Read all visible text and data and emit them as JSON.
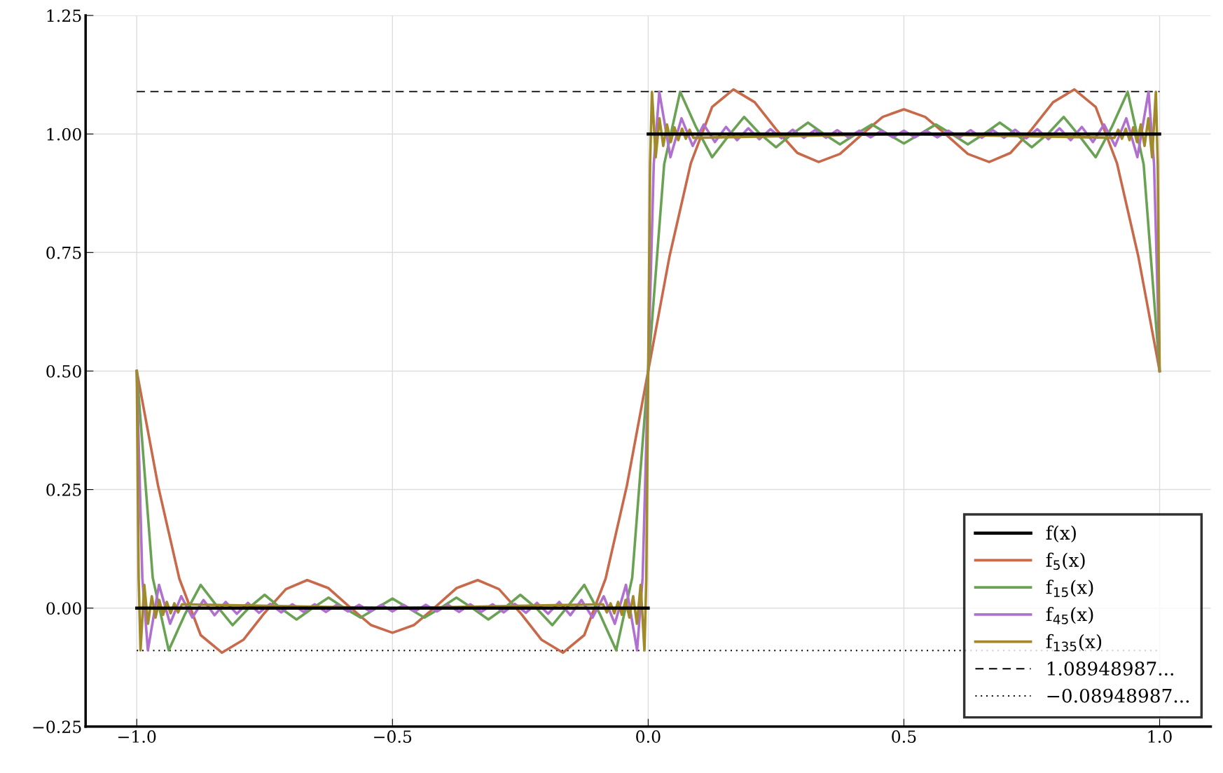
{
  "chart_data": {
    "type": "line",
    "xlim": [
      -1.1,
      1.1
    ],
    "ylim": [
      -0.25,
      1.25
    ],
    "xticks": [
      {
        "value": -1,
        "label": "−1.0"
      },
      {
        "value": -0.5,
        "label": "−0.5"
      },
      {
        "value": 0,
        "label": "0.0"
      },
      {
        "value": 0.5,
        "label": "0.5"
      },
      {
        "value": 1,
        "label": "1.0"
      }
    ],
    "yticks": [
      {
        "value": -0.25,
        "label": "−0.25"
      },
      {
        "value": 0,
        "label": "0.00"
      },
      {
        "value": 0.25,
        "label": "0.25"
      },
      {
        "value": 0.5,
        "label": "0.50"
      },
      {
        "value": 0.75,
        "label": "0.75"
      },
      {
        "value": 1,
        "label": "1.00"
      },
      {
        "value": 1.25,
        "label": "1.25"
      }
    ],
    "grid": true,
    "legend": "bottom right",
    "series": [
      {
        "name": "f$_{5}$(x)",
        "color": "#c8694a",
        "x": [
          -1,
          -0.9583,
          -0.9167,
          -0.875,
          -0.8333,
          -0.7917,
          -0.75,
          -0.7083,
          -0.6667,
          -0.625,
          -0.5833,
          -0.5417,
          -0.5,
          -0.4583,
          -0.4167,
          -0.375,
          -0.3333,
          -0.2917,
          -0.25,
          -0.2083,
          -0.1667,
          -0.125,
          -0.0833,
          -0.0417,
          0,
          0.0417,
          0.0833,
          0.125,
          0.1667,
          0.2083,
          0.25,
          0.2917,
          0.3333,
          0.375,
          0.4167,
          0.4583,
          0.5,
          0.5417,
          0.5833,
          0.625,
          0.6667,
          0.7083,
          0.75,
          0.7917,
          0.8333,
          0.875,
          0.9167,
          0.9583,
          1
        ],
        "values": [
          0.5,
          0.258,
          0.062,
          -0.057,
          -0.094,
          -0.067,
          -0.01,
          0.04,
          0.059,
          0.042,
          0.002,
          -0.036,
          -0.052,
          -0.036,
          0.002,
          0.042,
          0.059,
          0.04,
          -0.01,
          -0.067,
          -0.094,
          -0.057,
          0.062,
          0.258,
          0.5,
          0.742,
          0.938,
          1.057,
          1.094,
          1.067,
          1.01,
          0.96,
          0.941,
          0.958,
          0.998,
          1.036,
          1.052,
          1.036,
          0.998,
          0.958,
          0.941,
          0.96,
          1.01,
          1.067,
          1.094,
          1.057,
          0.938,
          0.742,
          0.5
        ]
      },
      {
        "name": "f$_{15}$(x)",
        "color": "#6aa253",
        "x": [
          -1,
          -0.96875,
          -0.9375,
          -0.90625,
          -0.875,
          -0.84375,
          -0.8125,
          -0.78125,
          -0.75,
          -0.71875,
          -0.6875,
          -0.65625,
          -0.625,
          -0.59375,
          -0.5625,
          -0.53125,
          -0.5,
          -0.46875,
          -0.4375,
          -0.40625,
          -0.375,
          -0.34375,
          -0.3125,
          -0.28125,
          -0.25,
          -0.21875,
          -0.1875,
          -0.15625,
          -0.125,
          -0.09375,
          -0.0625,
          -0.03125,
          0,
          0.03125,
          0.0625,
          0.09375,
          0.125,
          0.15625,
          0.1875,
          0.21875,
          0.25,
          0.28125,
          0.3125,
          0.34375,
          0.375,
          0.40625,
          0.4375,
          0.46875,
          0.5,
          0.53125,
          0.5625,
          0.59375,
          0.625,
          0.65625,
          0.6875,
          0.71875,
          0.75,
          0.78125,
          0.8125,
          0.84375,
          0.875,
          0.90625,
          0.9375,
          0.96875,
          1
        ],
        "values": [
          0.5,
          0.064,
          -0.089,
          -0.014,
          0.049,
          0.005,
          -0.036,
          0,
          0.028,
          0,
          -0.024,
          0,
          0.022,
          0,
          -0.02,
          0,
          0.02,
          0,
          -0.02,
          0,
          0.022,
          0,
          -0.024,
          0,
          0.028,
          0,
          -0.036,
          0.005,
          0.049,
          -0.014,
          -0.089,
          0.064,
          0.5,
          0.936,
          1.089,
          1.014,
          0.951,
          0.995,
          1.036,
          1,
          0.972,
          1,
          1.024,
          1,
          0.978,
          1,
          1.02,
          1,
          0.98,
          1,
          1.02,
          1,
          0.978,
          1,
          1.024,
          1,
          0.972,
          1,
          1.036,
          0.995,
          0.951,
          1.014,
          1.089,
          0.936,
          0.5
        ]
      },
      {
        "name": "f$_{45}$(x)",
        "color": "#b070d0",
        "x": [
          -1,
          -0.98913,
          -0.9783,
          -0.9565,
          -0.9348,
          -0.913,
          -0.8913,
          -0.8696,
          -0.8478,
          -0.8261,
          -0.8043,
          -0.7826,
          -0.7609,
          -0.7391,
          -0.7174,
          -0.6957,
          -0.6739,
          -0.6522,
          -0.6304,
          -0.6087,
          -0.587,
          -0.5652,
          -0.5435,
          -0.5217,
          -0.5,
          -0.4783,
          -0.4565,
          -0.4348,
          -0.413,
          -0.3913,
          -0.3696,
          -0.3478,
          -0.3261,
          -0.3043,
          -0.2826,
          -0.2609,
          -0.2391,
          -0.2174,
          -0.1957,
          -0.1739,
          -0.1522,
          -0.1304,
          -0.1087,
          -0.087,
          -0.0652,
          -0.0435,
          -0.0217,
          -0.01087,
          0,
          0.01087,
          0.0217,
          0.0435,
          0.0652,
          0.087,
          0.1087,
          0.1304,
          0.1522,
          0.1739,
          0.1957,
          0.2174,
          0.2391,
          0.2609,
          0.2826,
          0.3043,
          0.3261,
          0.3478,
          0.3696,
          0.3913,
          0.413,
          0.4348,
          0.4565,
          0.4783,
          0.5,
          0.5217,
          0.5435,
          0.5652,
          0.587,
          0.6087,
          0.6304,
          0.6522,
          0.6739,
          0.6957,
          0.7174,
          0.7391,
          0.7609,
          0.7826,
          0.8043,
          0.8261,
          0.8478,
          0.8696,
          0.8913,
          0.913,
          0.9348,
          0.9565,
          0.9783,
          0.98913,
          1
        ],
        "values": [
          0.5,
          0.064,
          -0.089,
          0.049,
          -0.033,
          0.025,
          -0.02,
          0.017,
          -0.015,
          0.013,
          -0.012,
          0.011,
          -0.01,
          0.009,
          -0.009,
          0.008,
          -0.008,
          0.008,
          -0.008,
          0.007,
          -0.007,
          0.007,
          -0.007,
          0.007,
          -0.007,
          0.007,
          -0.007,
          0.007,
          -0.007,
          0.007,
          -0.008,
          0.008,
          -0.008,
          0.008,
          -0.009,
          0.009,
          -0.01,
          0.011,
          -0.012,
          0.013,
          -0.015,
          0.017,
          -0.02,
          0.025,
          -0.033,
          0.049,
          -0.089,
          0.064,
          0.5,
          0.936,
          1.089,
          0.951,
          1.033,
          0.975,
          1.02,
          0.983,
          1.015,
          0.987,
          1.012,
          0.989,
          1.01,
          0.991,
          1.009,
          0.992,
          1.008,
          0.992,
          1.008,
          0.993,
          1.007,
          0.993,
          1.007,
          0.993,
          1.007,
          0.993,
          1.007,
          0.993,
          1.007,
          0.993,
          1.008,
          0.992,
          1.008,
          0.992,
          1.009,
          0.991,
          1.01,
          0.989,
          1.012,
          0.987,
          1.015,
          0.983,
          1.02,
          0.975,
          1.033,
          0.951,
          1.089,
          0.936,
          0.5
        ]
      },
      {
        "name": "f$_{135}$(x)",
        "color": "#a08a2a",
        "x": [
          -1,
          -0.99632,
          -0.99265,
          -0.98529,
          -0.97794,
          -0.97059,
          -0.96324,
          -0.95588,
          -0.94853,
          -0.94118,
          -0.93382,
          -0.92647,
          -0.91912,
          -0.91176,
          -0.5,
          -0.08824,
          -0.08088,
          -0.07353,
          -0.06618,
          -0.05882,
          -0.05147,
          -0.04412,
          -0.03676,
          -0.02941,
          -0.02206,
          -0.01471,
          -0.00735,
          -0.00368,
          0,
          0.00368,
          0.00735,
          0.01471,
          0.02206,
          0.02941,
          0.03676,
          0.04412,
          0.05147,
          0.05882,
          0.06618,
          0.07353,
          0.08088,
          0.08824,
          0.5,
          0.91176,
          0.91912,
          0.92647,
          0.93382,
          0.94118,
          0.94853,
          0.95588,
          0.96324,
          0.97059,
          0.97794,
          0.98529,
          0.99265,
          0.99632,
          1
        ],
        "values": [
          0.5,
          0.064,
          -0.089,
          0.049,
          -0.033,
          0.025,
          -0.02,
          0.017,
          -0.014,
          0.013,
          -0.011,
          0.01,
          -0.009,
          0.008,
          0,
          0.008,
          -0.009,
          0.01,
          -0.011,
          0.013,
          -0.014,
          0.017,
          -0.02,
          0.025,
          -0.033,
          0.049,
          -0.089,
          0.064,
          0.5,
          0.936,
          1.089,
          0.951,
          1.033,
          0.975,
          1.02,
          0.983,
          1.014,
          0.987,
          1.011,
          0.99,
          1.009,
          0.992,
          1,
          0.992,
          1.009,
          0.99,
          1.011,
          0.987,
          1.014,
          0.983,
          1.02,
          0.975,
          1.033,
          0.951,
          1.089,
          0.936,
          0.5
        ]
      },
      {
        "name": "f(x)",
        "color": "#000000",
        "x": [
          -1,
          0,
          0,
          1
        ],
        "values": [
          0,
          0,
          1,
          1
        ]
      }
    ],
    "ref_lines": [
      {
        "axis": "y",
        "value": 1.08948987,
        "label": "1.08948987...",
        "line_style": "dashed",
        "color": "#000000"
      },
      {
        "axis": "y",
        "value": -0.08948987,
        "label": "−0.08948987...",
        "line_style": "dotted",
        "color": "#000000"
      }
    ]
  }
}
